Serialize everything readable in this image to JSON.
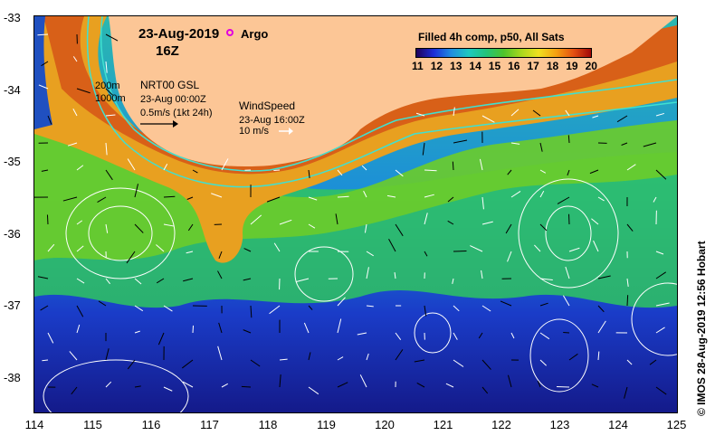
{
  "header": {
    "date": "23-Aug-2019",
    "hour": "16Z",
    "argo_label": "Argo"
  },
  "legend": {
    "isobath_200": "200m",
    "isobath_1000": "1000m",
    "current_product": "NRT00 GSL",
    "current_time": "23-Aug 00:00Z",
    "current_scale": "0.5m/s (1kt 24h)",
    "wind_title": "WindSpeed",
    "wind_time": "23-Aug 16:00Z",
    "wind_scale": "10 m/s"
  },
  "colorbar": {
    "title": "Filled 4h comp, p50, All Sats",
    "ticks": [
      "11",
      "12",
      "13",
      "14",
      "15",
      "16",
      "17",
      "18",
      "19",
      "20"
    ]
  },
  "axes": {
    "x_ticks": [
      "114",
      "115",
      "116",
      "117",
      "118",
      "119",
      "120",
      "121",
      "122",
      "123",
      "124",
      "125"
    ],
    "y_ticks": [
      "-33",
      "-34",
      "-35",
      "-36",
      "-37",
      "-38"
    ]
  },
  "credit": "© IMOS 28-Aug-2019 12:56 Hobart",
  "colors": {
    "land": "#fcc696",
    "isobath": "#40e0d0",
    "argo": "#e000e0"
  }
}
